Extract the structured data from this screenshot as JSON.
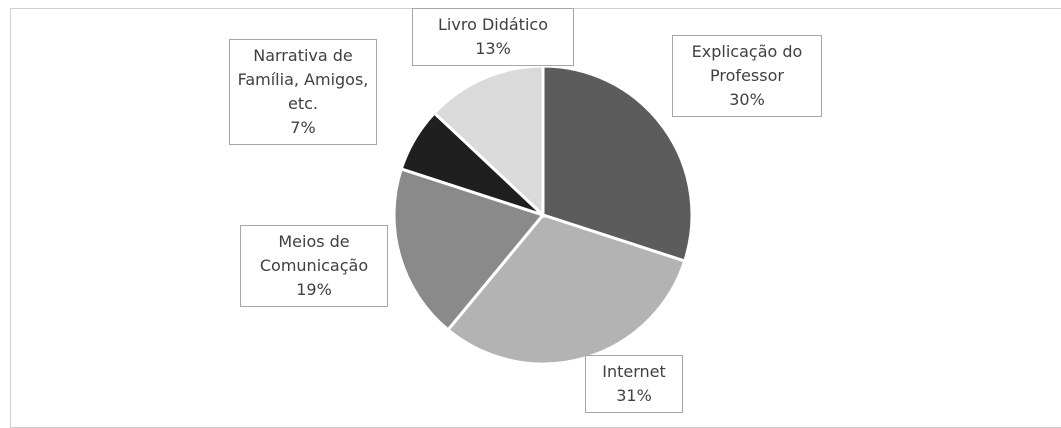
{
  "chart_data": {
    "type": "pie",
    "categories": [
      "Explicação do Professor",
      "Internet",
      "Meios de Comunicação",
      "Narrativa de Família, Amigos, etc.",
      "Livro Didático"
    ],
    "values": [
      30,
      31,
      19,
      7,
      13
    ],
    "value_labels": [
      "30%",
      "31%",
      "19%",
      "7%",
      "13%"
    ],
    "colors": [
      "#5c5c5c",
      "#b3b3b3",
      "#8a8a8a",
      "#1f1f1f",
      "#dadada"
    ]
  }
}
